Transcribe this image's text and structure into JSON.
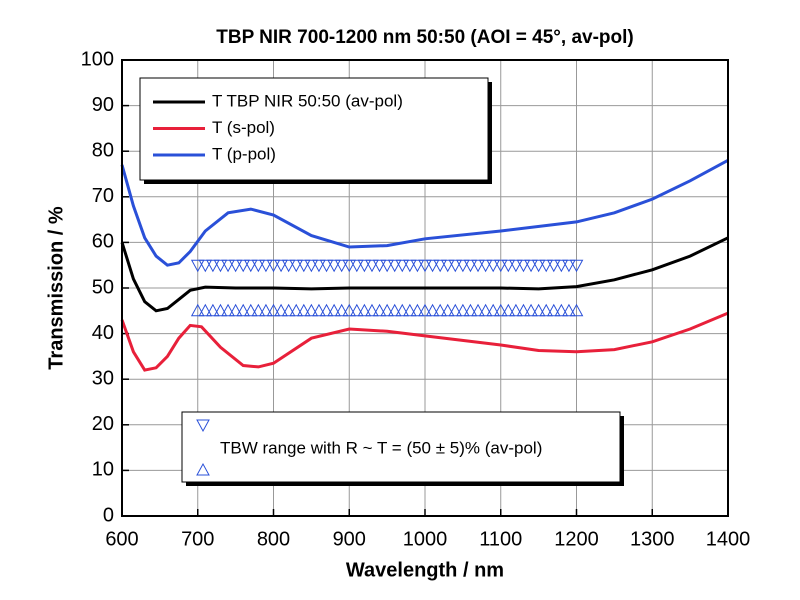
{
  "chart_data": {
    "type": "line",
    "title": "TBP NIR 700-1200 nm 50:50 (AOI = 45°, av-pol)",
    "x_label": "Wavelength / nm",
    "y_label": "Transmission / %",
    "xlim": [
      600,
      1400
    ],
    "ylim": [
      0,
      100
    ],
    "xticks": [
      600,
      700,
      800,
      900,
      1000,
      1100,
      1200,
      1300,
      1400
    ],
    "yticks": [
      0,
      10,
      20,
      30,
      40,
      50,
      60,
      70,
      80,
      90,
      100
    ],
    "grid": true,
    "series": [
      {
        "name": "T TBP NIR 50:50 (av-pol)",
        "color": "#000000",
        "x": [
          600,
          615,
          630,
          645,
          660,
          675,
          690,
          710,
          750,
          800,
          850,
          900,
          1000,
          1100,
          1150,
          1200,
          1250,
          1300,
          1350,
          1400
        ],
        "values": [
          60,
          52,
          47,
          45,
          45.5,
          47.5,
          49.5,
          50.2,
          50,
          50,
          49.8,
          50,
          50,
          50,
          49.8,
          50.3,
          51.8,
          54,
          57,
          61
        ]
      },
      {
        "name": "T (s-pol)",
        "color": "#e8203a",
        "x": [
          600,
          615,
          630,
          645,
          660,
          675,
          690,
          705,
          730,
          760,
          780,
          800,
          850,
          900,
          950,
          1000,
          1100,
          1150,
          1200,
          1250,
          1300,
          1350,
          1400
        ],
        "values": [
          43,
          36,
          32,
          32.5,
          35,
          39,
          41.8,
          41.5,
          37,
          33,
          32.7,
          33.5,
          39,
          41,
          40.5,
          39.5,
          37.5,
          36.3,
          36,
          36.5,
          38.2,
          41,
          44.5
        ]
      },
      {
        "name": "T (p-pol)",
        "color": "#2a50d8",
        "x": [
          600,
          615,
          630,
          645,
          660,
          675,
          690,
          710,
          740,
          770,
          800,
          850,
          900,
          950,
          1000,
          1100,
          1200,
          1250,
          1300,
          1350,
          1400
        ],
        "values": [
          77,
          68,
          61,
          57,
          55,
          55.5,
          58,
          62.5,
          66.5,
          67.3,
          66,
          61.5,
          59,
          59.3,
          60.8,
          62.5,
          64.5,
          66.5,
          69.5,
          73.5,
          78
        ]
      }
    ],
    "range_legend": "TBW range with R ~ T = (50 ± 5)% (av-pol)",
    "range_color": "#2a50d8",
    "range_x": [
      700,
      710,
      720,
      730,
      740,
      750,
      760,
      770,
      780,
      790,
      800,
      810,
      820,
      830,
      840,
      850,
      860,
      870,
      880,
      890,
      900,
      910,
      920,
      930,
      940,
      950,
      960,
      970,
      980,
      990,
      1000,
      1010,
      1020,
      1030,
      1040,
      1050,
      1060,
      1070,
      1080,
      1090,
      1100,
      1110,
      1120,
      1130,
      1140,
      1150,
      1160,
      1170,
      1180,
      1190,
      1200
    ],
    "range_upper": [
      55,
      55,
      55,
      55,
      55,
      55,
      55,
      55,
      55,
      55,
      55,
      55,
      55,
      55,
      55,
      55,
      55,
      55,
      55,
      55,
      55,
      55,
      55,
      55,
      55,
      55,
      55,
      55,
      55,
      55,
      55,
      55,
      55,
      55,
      55,
      55,
      55,
      55,
      55,
      55,
      55,
      55,
      55,
      55,
      55,
      55,
      55,
      55,
      55,
      55,
      55
    ],
    "range_lower": [
      45,
      45,
      45,
      45,
      45,
      45,
      45,
      45,
      45,
      45,
      45,
      45,
      45,
      45,
      45,
      45,
      45,
      45,
      45,
      45,
      45,
      45,
      45,
      45,
      45,
      45,
      45,
      45,
      45,
      45,
      45,
      45,
      45,
      45,
      45,
      45,
      45,
      45,
      45,
      45,
      45,
      45,
      45,
      45,
      45,
      45,
      45,
      45,
      45,
      45,
      45
    ]
  }
}
